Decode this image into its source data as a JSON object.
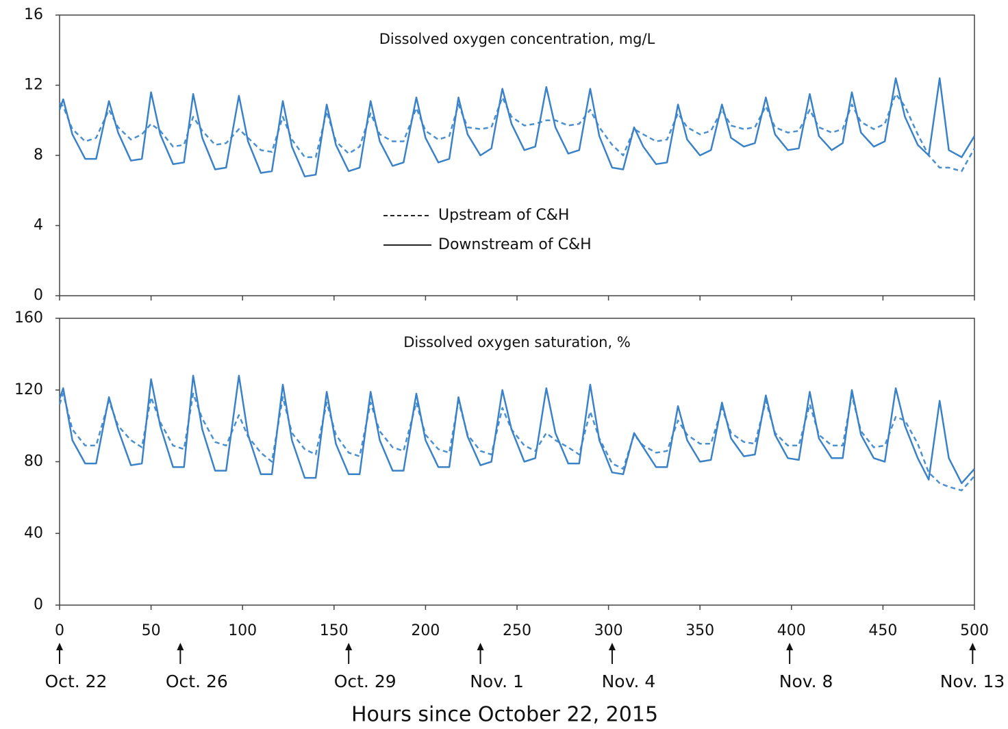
{
  "chart_data": [
    {
      "type": "line",
      "title": "Dissolved oxygen concentration, mg/L",
      "x": [
        0,
        2,
        7,
        14,
        20,
        27,
        32,
        39,
        45,
        50,
        55,
        62,
        68,
        73,
        78,
        85,
        91,
        98,
        103,
        110,
        116,
        122,
        127,
        134,
        140,
        146,
        151,
        158,
        164,
        170,
        175,
        182,
        188,
        195,
        200,
        207,
        213,
        218,
        223,
        230,
        236,
        242,
        247,
        254,
        260,
        266,
        271,
        278,
        284,
        290,
        295,
        302,
        308,
        314,
        319,
        326,
        332,
        338,
        343,
        350,
        356,
        362,
        367,
        374,
        380,
        386,
        391,
        398,
        404,
        410,
        415,
        422,
        428,
        433,
        438,
        445,
        451,
        457,
        462,
        469,
        475,
        481,
        486,
        493,
        500
      ],
      "xlim": [
        0,
        500
      ],
      "xticks": [
        0,
        50,
        100,
        150,
        200,
        250,
        300,
        350,
        400,
        450,
        500
      ],
      "xtick_labels": false,
      "ylim": [
        0,
        16
      ],
      "yticks": [
        0,
        4,
        8,
        12,
        16
      ],
      "legend": "center",
      "series": [
        {
          "name": "Upstream of C&H",
          "color": "#4a8fd0",
          "dash": true,
          "values": [
            11.0,
            10.8,
            9.5,
            8.8,
            9.0,
            10.6,
            9.6,
            8.9,
            9.2,
            9.8,
            9.4,
            8.5,
            8.6,
            10.2,
            9.4,
            8.6,
            8.7,
            9.5,
            9.0,
            8.3,
            8.2,
            10.2,
            8.9,
            7.9,
            7.9,
            10.5,
            8.8,
            8.1,
            8.5,
            10.4,
            9.2,
            8.8,
            8.8,
            10.7,
            9.4,
            8.9,
            9.1,
            10.9,
            9.6,
            9.5,
            9.6,
            11.3,
            10.2,
            9.7,
            9.8,
            10.0,
            10.0,
            9.7,
            9.8,
            10.6,
            9.6,
            8.6,
            8.0,
            9.5,
            9.2,
            8.8,
            8.9,
            10.4,
            9.6,
            9.2,
            9.4,
            10.6,
            9.7,
            9.5,
            9.6,
            10.8,
            9.6,
            9.3,
            9.4,
            10.6,
            9.6,
            9.3,
            9.5,
            10.9,
            9.9,
            9.5,
            9.8,
            11.5,
            10.8,
            9.2,
            8.0,
            7.3,
            7.3,
            7.1,
            8.4
          ]
        },
        {
          "name": "Downstream of C&H",
          "color": "#3a82c8",
          "dash": false,
          "values": [
            10.6,
            11.2,
            9.2,
            7.8,
            7.8,
            11.1,
            9.3,
            7.7,
            7.8,
            11.6,
            9.2,
            7.5,
            7.6,
            11.5,
            9.0,
            7.2,
            7.3,
            11.4,
            8.8,
            7.0,
            7.1,
            11.1,
            8.5,
            6.8,
            6.9,
            10.9,
            8.6,
            7.1,
            7.3,
            11.1,
            8.8,
            7.4,
            7.6,
            11.3,
            9.0,
            7.6,
            7.8,
            11.3,
            9.2,
            8.0,
            8.4,
            11.8,
            9.8,
            8.3,
            8.5,
            11.9,
            9.6,
            8.1,
            8.3,
            11.8,
            9.1,
            7.3,
            7.2,
            9.6,
            8.5,
            7.5,
            7.6,
            10.9,
            8.9,
            8.0,
            8.3,
            10.9,
            9.0,
            8.5,
            8.7,
            11.3,
            9.2,
            8.3,
            8.4,
            11.5,
            9.1,
            8.3,
            8.7,
            11.6,
            9.3,
            8.5,
            8.8,
            12.4,
            10.2,
            8.6,
            8.0,
            12.4,
            8.3,
            7.9,
            9.1
          ]
        }
      ]
    },
    {
      "type": "line",
      "title": "Dissolved oxygen saturation, %",
      "x": [
        0,
        2,
        7,
        14,
        20,
        27,
        32,
        39,
        45,
        50,
        55,
        62,
        68,
        73,
        78,
        85,
        91,
        98,
        103,
        110,
        116,
        122,
        127,
        134,
        140,
        146,
        151,
        158,
        164,
        170,
        175,
        182,
        188,
        195,
        200,
        207,
        213,
        218,
        223,
        230,
        236,
        242,
        247,
        254,
        260,
        266,
        271,
        278,
        284,
        290,
        295,
        302,
        308,
        314,
        319,
        326,
        332,
        338,
        343,
        350,
        356,
        362,
        367,
        374,
        380,
        386,
        391,
        398,
        404,
        410,
        415,
        422,
        428,
        433,
        438,
        445,
        451,
        457,
        462,
        469,
        475,
        481,
        486,
        493,
        500
      ],
      "xlim": [
        0,
        500
      ],
      "xticks": [
        0,
        50,
        100,
        150,
        200,
        250,
        300,
        350,
        400,
        450,
        500
      ],
      "xtick_labels": true,
      "xlabel": "Hours since October 22, 2015",
      "ylim": [
        0,
        160
      ],
      "yticks": [
        0,
        40,
        80,
        120,
        160
      ],
      "annotations": [
        {
          "label": "Oct. 22",
          "x": 0
        },
        {
          "label": "Oct. 26",
          "x": 66
        },
        {
          "label": "Oct. 29",
          "x": 158
        },
        {
          "label": "Nov. 1",
          "x": 230
        },
        {
          "label": "Nov. 4",
          "x": 302
        },
        {
          "label": "Nov. 8",
          "x": 399
        },
        {
          "label": "Nov. 13",
          "x": 499
        }
      ],
      "series": [
        {
          "color": "#4a8fd0",
          "dash": true,
          "values": [
            112,
            118,
            98,
            89,
            89,
            114,
            100,
            92,
            88,
            116,
            102,
            89,
            87,
            118,
            104,
            91,
            89,
            106,
            94,
            85,
            80,
            116,
            96,
            87,
            84,
            113,
            95,
            85,
            83,
            113,
            97,
            88,
            86,
            113,
            95,
            87,
            85,
            114,
            95,
            86,
            84,
            110,
            98,
            89,
            86,
            96,
            92,
            88,
            84,
            108,
            93,
            79,
            76,
            95,
            89,
            85,
            86,
            103,
            95,
            90,
            90,
            110,
            96,
            91,
            90,
            114,
            96,
            89,
            89,
            112,
            95,
            89,
            89,
            117,
            97,
            88,
            89,
            105,
            103,
            90,
            74,
            68,
            66,
            64,
            72
          ]
        },
        {
          "color": "#3a82c8",
          "dash": false,
          "values": [
            115,
            121,
            92,
            79,
            79,
            116,
            98,
            78,
            79,
            126,
            100,
            77,
            77,
            128,
            98,
            75,
            75,
            128,
            95,
            73,
            73,
            123,
            92,
            71,
            71,
            119,
            90,
            73,
            73,
            119,
            92,
            75,
            75,
            118,
            92,
            77,
            77,
            116,
            94,
            78,
            80,
            120,
            98,
            80,
            82,
            121,
            96,
            79,
            79,
            123,
            92,
            74,
            73,
            96,
            88,
            77,
            77,
            111,
            92,
            80,
            81,
            113,
            93,
            83,
            84,
            117,
            95,
            82,
            81,
            119,
            93,
            82,
            82,
            120,
            95,
            82,
            80,
            121,
            100,
            82,
            70,
            114,
            82,
            68,
            76
          ]
        }
      ]
    }
  ]
}
